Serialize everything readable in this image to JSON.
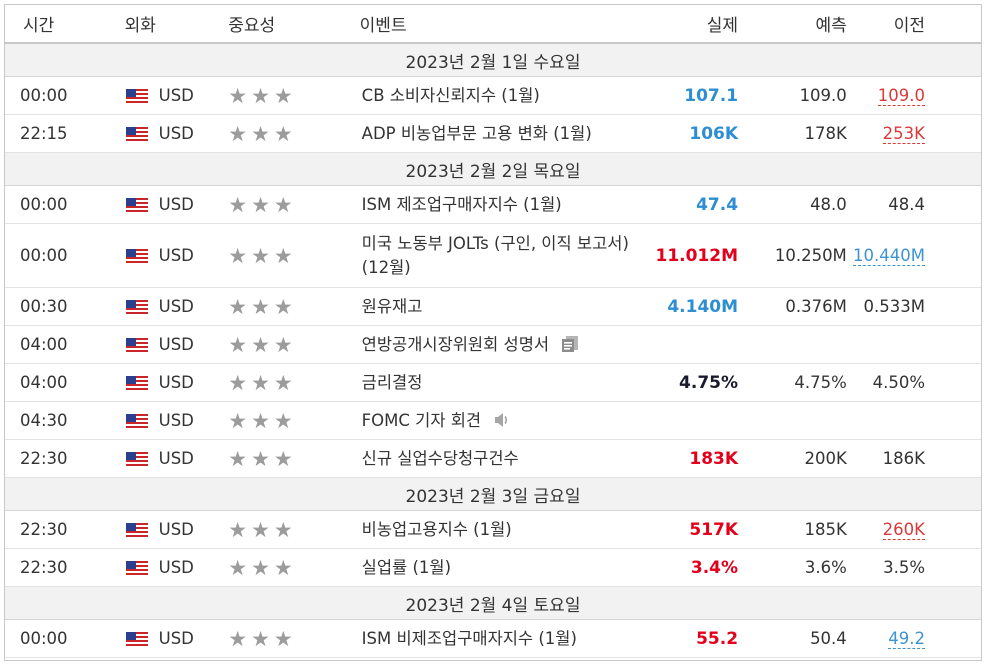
{
  "headers": {
    "time": "시간",
    "currency": "외화",
    "importance": "중요성",
    "event": "이벤트",
    "actual": "실제",
    "forecast": "예측",
    "previous": "이전"
  },
  "dates": [
    "2023년 2월 1일 수요일",
    "2023년 2월 2일 목요일",
    "2023년 2월 3일 금요일",
    "2023년 2월 4일 토요일"
  ],
  "importance_stars": "★",
  "colors": {
    "positive": "#2d8ed2",
    "negative": "#e3001b",
    "neutral": "#1a1a2e",
    "previous_revised_down": "#d93a3a",
    "previous_revised_up": "#3d94d0",
    "star": "#9c9c9c"
  },
  "rows": [
    {
      "time": "00:00",
      "currency": "USD",
      "event": "CB 소비자신뢰지수 (1월)",
      "actual": "107.1",
      "forecast": "109.0",
      "previous": "109.0",
      "actual_tone": "positive",
      "previous_tone": "revised-down"
    },
    {
      "time": "22:15",
      "currency": "USD",
      "event": "ADP 비농업부문 고용 변화 (1월)",
      "actual": "106K",
      "forecast": "178K",
      "previous": "253K",
      "actual_tone": "positive",
      "previous_tone": "revised-down"
    },
    {
      "time": "00:00",
      "currency": "USD",
      "event": "ISM 제조업구매자지수 (1월)",
      "actual": "47.4",
      "forecast": "48.0",
      "previous": "48.4",
      "actual_tone": "positive",
      "previous_tone": "plain"
    },
    {
      "time": "00:00",
      "currency": "USD",
      "event": "미국 노동부 JOLTs (구인, 이직 보고서) (12월)",
      "actual": "11.012M",
      "forecast": "10.250M",
      "previous": "10.440M",
      "actual_tone": "negative",
      "previous_tone": "revised-up"
    },
    {
      "time": "00:30",
      "currency": "USD",
      "event": "원유재고",
      "actual": "4.140M",
      "forecast": "0.376M",
      "previous": "0.533M",
      "actual_tone": "positive",
      "previous_tone": "plain"
    },
    {
      "time": "04:00",
      "currency": "USD",
      "event": "연방공개시장위원회 성명서",
      "actual": "",
      "forecast": "",
      "previous": "",
      "icon": "document-icon"
    },
    {
      "time": "04:00",
      "currency": "USD",
      "event": "금리결정",
      "actual": "4.75%",
      "forecast": "4.75%",
      "previous": "4.50%",
      "actual_tone": "neutral",
      "previous_tone": "plain"
    },
    {
      "time": "04:30",
      "currency": "USD",
      "event": "FOMC 기자 회견",
      "actual": "",
      "forecast": "",
      "previous": "",
      "icon": "speaker-icon"
    },
    {
      "time": "22:30",
      "currency": "USD",
      "event": "신규 실업수당청구건수",
      "actual": "183K",
      "forecast": "200K",
      "previous": "186K",
      "actual_tone": "negative",
      "previous_tone": "plain"
    },
    {
      "time": "22:30",
      "currency": "USD",
      "event": "비농업고용지수 (1월)",
      "actual": "517K",
      "forecast": "185K",
      "previous": "260K",
      "actual_tone": "negative",
      "previous_tone": "revised-down"
    },
    {
      "time": "22:30",
      "currency": "USD",
      "event": "실업률 (1월)",
      "actual": "3.4%",
      "forecast": "3.6%",
      "previous": "3.5%",
      "actual_tone": "negative",
      "previous_tone": "plain"
    },
    {
      "time": "00:00",
      "currency": "USD",
      "event": "ISM 비제조업구매자지수 (1월)",
      "actual": "55.2",
      "forecast": "50.4",
      "previous": "49.2",
      "actual_tone": "negative",
      "previous_tone": "revised-up"
    }
  ]
}
